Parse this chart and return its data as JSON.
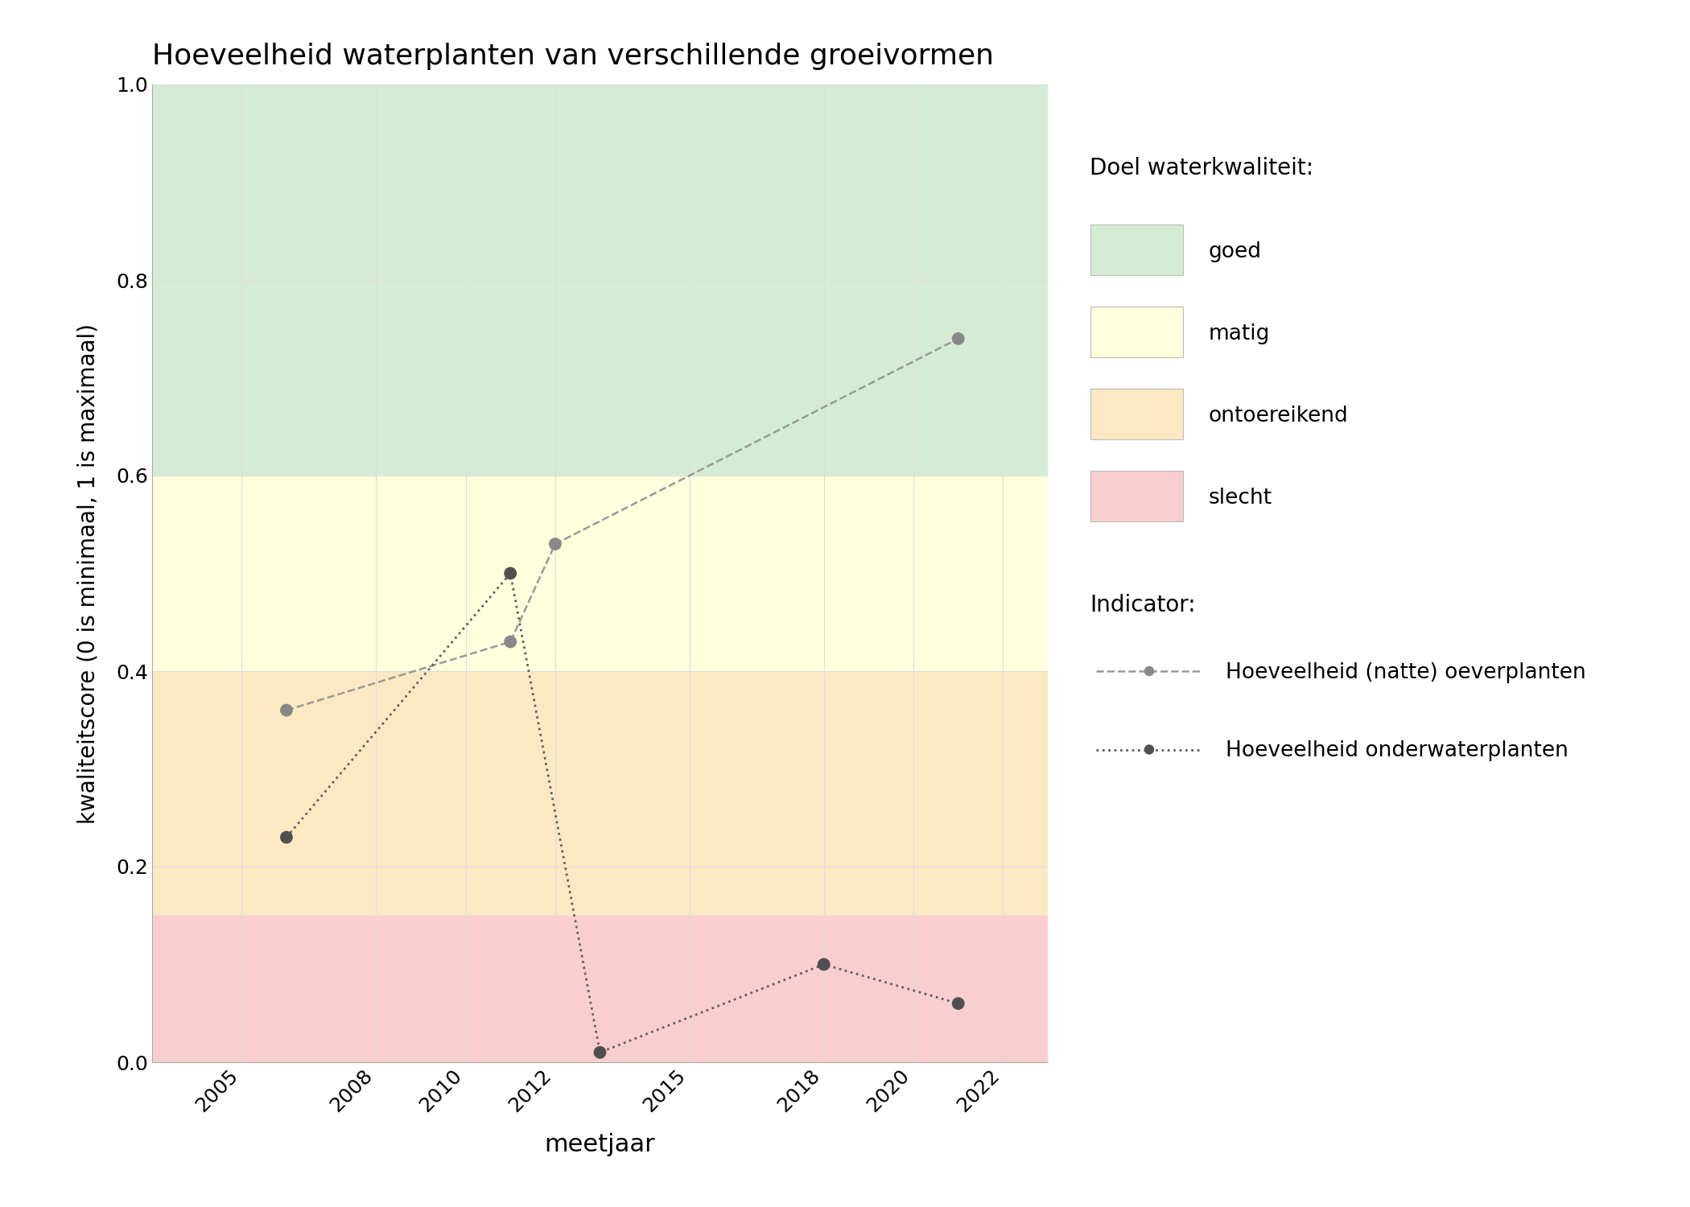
{
  "title": "Hoeveelheid waterplanten van verschillende groeivormen",
  "xlabel": "meetjaar",
  "ylabel": "kwaliteitscore (0 is minimaal, 1 is maximaal)",
  "xlim": [
    2003,
    2023
  ],
  "ylim": [
    0.0,
    1.0
  ],
  "xticks": [
    2005,
    2008,
    2010,
    2012,
    2015,
    2018,
    2020,
    2022
  ],
  "yticks": [
    0.0,
    0.2,
    0.4,
    0.6,
    0.8,
    1.0
  ],
  "background_color": "#ffffff",
  "zone_colors": {
    "goed": "#d5ecd4",
    "matig": "#ffffdd",
    "ontoereikend": "#fde8c4",
    "slecht": "#f9cece"
  },
  "zone_boundaries": {
    "goed_min": 0.6,
    "matig_min": 0.4,
    "ontoereikend_min": 0.15,
    "slecht_min": 0.0
  },
  "line1": {
    "label": "Hoeveelheid (natte) oeverplanten",
    "x": [
      2006,
      2011,
      2012,
      2021
    ],
    "y": [
      0.36,
      0.43,
      0.53,
      0.74
    ],
    "color": "#999999",
    "linestyle": "dashed",
    "linewidth": 1.8,
    "markersize": 130,
    "marker_color": "#888888"
  },
  "line2": {
    "label": "Hoeveelheid onderwaterplanten",
    "x": [
      2006,
      2011,
      2013,
      2018,
      2021
    ],
    "y": [
      0.23,
      0.5,
      0.01,
      0.1,
      0.06
    ],
    "color": "#606060",
    "linestyle": "dotted",
    "linewidth": 2.0,
    "markersize": 130,
    "marker_color": "#505050"
  },
  "legend_title1": "Doel waterkwaliteit:",
  "legend_title2": "Indicator:",
  "legend_items_zones": [
    {
      "label": "goed",
      "color": "#d5ecd4"
    },
    {
      "label": "matig",
      "color": "#ffffdd"
    },
    {
      "label": "ontoereikend",
      "color": "#fde8c4"
    },
    {
      "label": "slecht",
      "color": "#f9cece"
    }
  ],
  "grid_color": "#dddddd",
  "grid_linewidth": 0.8
}
